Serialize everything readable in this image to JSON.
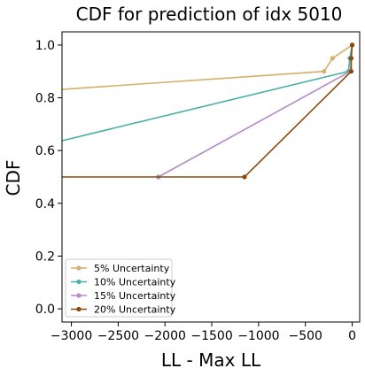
{
  "chart_data": {
    "type": "line",
    "title": "CDF for prediction of idx 5010",
    "xlabel": "LL - Max LL",
    "ylabel": "CDF",
    "xlim": [
      -3100,
      80
    ],
    "ylim": [
      -0.05,
      1.05
    ],
    "x_ticks": [
      -3000,
      -2500,
      -2000,
      -1500,
      -1000,
      -500,
      0
    ],
    "x_tick_labels": [
      "−3000",
      "−2500",
      "−2000",
      "−1500",
      "−1000",
      "−500",
      "0"
    ],
    "y_ticks": [
      0.0,
      0.2,
      0.4,
      0.6,
      0.8,
      1.0
    ],
    "y_tick_labels": [
      "0.0",
      "0.2",
      "0.4",
      "0.6",
      "0.8",
      "1.0"
    ],
    "grid": false,
    "legend_position": "lower-left",
    "series": [
      {
        "name": "5% Uncertainty",
        "color": "#d4b06a",
        "x": [
          -4000,
          -300,
          -210,
          0,
          0
        ],
        "y": [
          0.81,
          0.9,
          0.95,
          1.0,
          1.0
        ],
        "markers": [
          false,
          true,
          true,
          true,
          true
        ]
      },
      {
        "name": "10% Uncertainty",
        "color": "#4aafa6",
        "x": [
          -4000,
          -40,
          -25,
          0,
          0
        ],
        "y": [
          0.56,
          0.9,
          0.95,
          1.0,
          1.0
        ],
        "markers": [
          false,
          true,
          true,
          true,
          true
        ]
      },
      {
        "name": "15% Uncertainty",
        "color": "#b28cc4",
        "x": [
          -2070,
          -2070,
          -20,
          0,
          0
        ],
        "y": [
          0.5,
          0.5,
          0.9,
          1.0,
          1.0
        ],
        "markers": [
          true,
          true,
          true,
          true,
          true
        ]
      },
      {
        "name": "20% Uncertainty",
        "color": "#8b4a0e",
        "x": [
          -4000,
          -1150,
          -10,
          -10,
          0
        ],
        "y": [
          0.5,
          0.5,
          0.9,
          0.95,
          1.0
        ],
        "markers": [
          false,
          true,
          true,
          true,
          true
        ]
      }
    ]
  }
}
